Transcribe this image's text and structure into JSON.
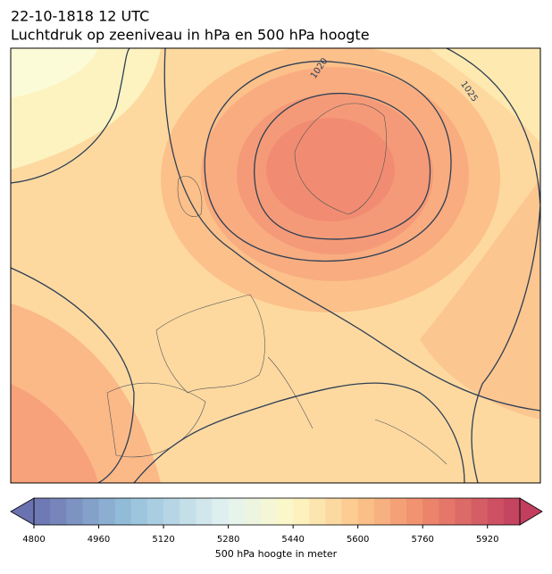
{
  "title": {
    "line1": "22-10-1818 12 UTC",
    "line2": "Luchtdruk op zeeniveau in hPa en 500 hPa hoogte"
  },
  "map": {
    "contour_labels": [
      "1020",
      "1025"
    ]
  },
  "colorbar": {
    "label": "500 hPa hoogte in meter",
    "range": [
      4800,
      6000
    ],
    "step": 40,
    "ticks": [
      4800,
      4960,
      5120,
      5280,
      5440,
      5600,
      5760,
      5920
    ],
    "color_stops": [
      {
        "value": 4800,
        "color": "#6b72b0"
      },
      {
        "value": 5040,
        "color": "#96c2dc"
      },
      {
        "value": 5280,
        "color": "#e4f3f1"
      },
      {
        "value": 5440,
        "color": "#fdf8c4"
      },
      {
        "value": 5600,
        "color": "#fcc68b"
      },
      {
        "value": 5760,
        "color": "#ef8a6c"
      },
      {
        "value": 6000,
        "color": "#c13e5e"
      }
    ]
  }
}
